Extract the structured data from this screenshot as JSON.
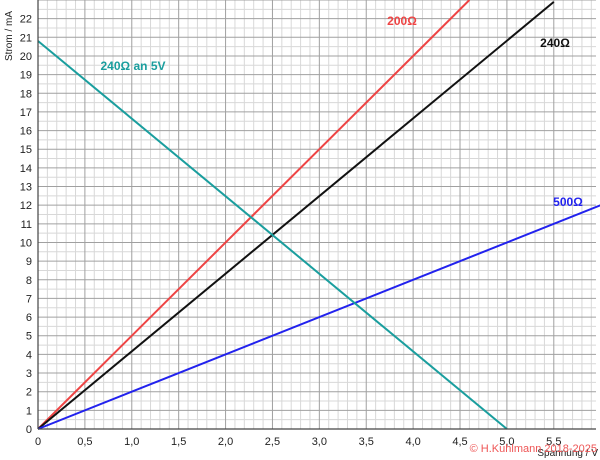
{
  "chart_data": {
    "type": "line",
    "xlabel": "Spannung / V",
    "ylabel": "Strom / mA",
    "xlim": [
      0,
      5.95
    ],
    "ylim": [
      0,
      23
    ],
    "grid": true,
    "x_ticks": [
      "0",
      "0,5",
      "1,0",
      "1,5",
      "2,0",
      "2,5",
      "3,0",
      "3,5",
      "4,0",
      "4,5",
      "5,0",
      "5,5"
    ],
    "y_ticks": [
      "0",
      "1",
      "2",
      "3",
      "4",
      "5",
      "6",
      "7",
      "8",
      "9",
      "10",
      "11",
      "12",
      "13",
      "14",
      "15",
      "16",
      "17",
      "18",
      "19",
      "20",
      "21",
      "22"
    ],
    "series": [
      {
        "name": "200Ω",
        "color": "#ee4444",
        "x": [
          0,
          4.6
        ],
        "y": [
          0,
          23
        ]
      },
      {
        "name": "240Ω",
        "color": "#111111",
        "x": [
          0,
          5.5
        ],
        "y": [
          0,
          22.9
        ]
      },
      {
        "name": "500Ω",
        "color": "#2222ee",
        "x": [
          0,
          6.0
        ],
        "y": [
          0,
          12
        ]
      },
      {
        "name": "240Ω an 5V",
        "color": "#1a9e9e",
        "x": [
          0,
          5.0
        ],
        "y": [
          20.8,
          0
        ]
      }
    ],
    "copyright": "© H.Kuhlmann 2018-2025"
  }
}
